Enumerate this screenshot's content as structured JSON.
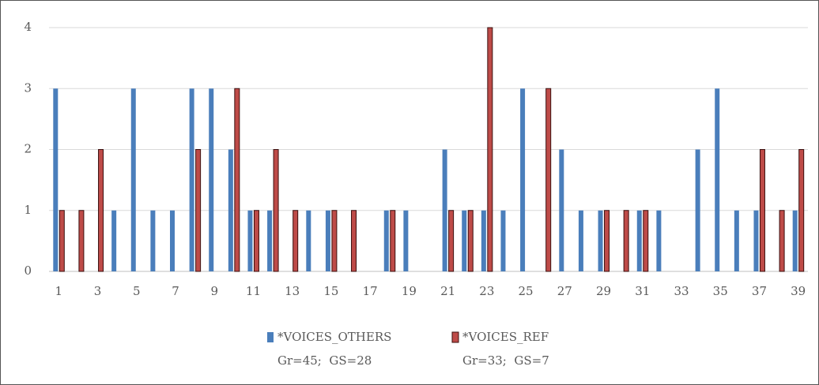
{
  "chart_data": {
    "type": "bar",
    "categories": [
      1,
      null,
      3,
      null,
      5,
      null,
      7,
      null,
      9,
      null,
      11,
      null,
      13,
      null,
      15,
      null,
      17,
      null,
      19,
      null,
      21,
      null,
      23,
      null,
      25,
      null,
      27,
      null,
      29,
      null,
      31,
      null,
      33,
      null,
      35,
      null,
      37,
      null,
      39
    ],
    "series": [
      {
        "name": "*VOICES_OTHERS",
        "note": "Gr=45;  GS=28",
        "color": "#4a7ebb",
        "values": [
          3,
          0,
          0,
          1,
          3,
          1,
          1,
          3,
          3,
          2,
          1,
          1,
          0,
          1,
          1,
          0,
          0,
          1,
          1,
          0,
          2,
          1,
          1,
          1,
          3,
          0,
          2,
          1,
          1,
          0,
          1,
          1,
          0,
          2,
          3,
          1,
          1,
          0,
          1
        ]
      },
      {
        "name": "*VOICES_REF",
        "note": "Gr=33;  GS=7",
        "color": "#be4b48",
        "values": [
          1,
          1,
          2,
          0,
          0,
          0,
          0,
          2,
          0,
          3,
          1,
          2,
          1,
          0,
          1,
          1,
          0,
          1,
          0,
          0,
          1,
          1,
          4,
          0,
          0,
          3,
          0,
          0,
          1,
          1,
          1,
          0,
          0,
          0,
          0,
          0,
          2,
          1,
          2
        ]
      }
    ],
    "ylim": [
      0,
      4
    ],
    "yticks": [
      0,
      1,
      2,
      3,
      4
    ],
    "grid": true,
    "legend": "bottom"
  }
}
